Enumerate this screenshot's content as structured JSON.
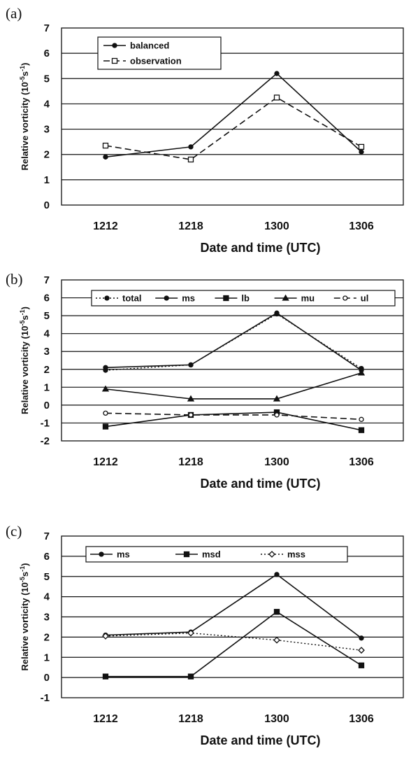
{
  "chart_data": [
    {
      "panel": "(a)",
      "type": "line",
      "categories": [
        "1212",
        "1218",
        "1300",
        "1306"
      ],
      "xlabel": "Date and time (UTC)",
      "ylabel_main": "Relative vorticity (10",
      "ylabel_exp1": "-5",
      "ylabel_mid": "s",
      "ylabel_exp2": "-1",
      "ylabel_end": ")",
      "ylim": [
        0,
        7
      ],
      "yticks": [
        "0",
        "1",
        "2",
        "3",
        "4",
        "5",
        "6",
        "7"
      ],
      "grid": true,
      "legend_position": "top-left",
      "series": [
        {
          "name": "balanced",
          "values": [
            1.9,
            2.3,
            5.2,
            2.1
          ],
          "dash": "solid",
          "marker": "dot"
        },
        {
          "name": "observation",
          "values": [
            2.35,
            1.8,
            4.25,
            2.3
          ],
          "dash": "dashed",
          "marker": "open-square"
        }
      ]
    },
    {
      "panel": "(b)",
      "type": "line",
      "categories": [
        "1212",
        "1218",
        "1300",
        "1306"
      ],
      "xlabel": "Date and time (UTC)",
      "ylabel_main": "Relative vorticity (10",
      "ylabel_exp1": "-5",
      "ylabel_mid": "s",
      "ylabel_exp2": "-1",
      "ylabel_end": ")",
      "ylim": [
        -2,
        7
      ],
      "yticks": [
        "-2",
        "-1",
        "0",
        "1",
        "2",
        "3",
        "4",
        "5",
        "6",
        "7"
      ],
      "grid": true,
      "legend_position": "top",
      "series": [
        {
          "name": "total",
          "values": [
            1.95,
            2.25,
            5.1,
            2.05
          ],
          "dash": "dotted",
          "marker": "dot"
        },
        {
          "name": "ms",
          "values": [
            2.1,
            2.25,
            5.15,
            1.95
          ],
          "dash": "solid",
          "marker": "dot"
        },
        {
          "name": "lb",
          "values": [
            -1.2,
            -0.55,
            -0.4,
            -1.4
          ],
          "dash": "solid",
          "marker": "square"
        },
        {
          "name": "mu",
          "values": [
            0.9,
            0.35,
            0.35,
            1.8
          ],
          "dash": "solid",
          "marker": "triangle"
        },
        {
          "name": "ul",
          "values": [
            -0.45,
            -0.55,
            -0.55,
            -0.8
          ],
          "dash": "dashed",
          "marker": "open-circle"
        }
      ]
    },
    {
      "panel": "(c)",
      "type": "line",
      "categories": [
        "1212",
        "1218",
        "1300",
        "1306"
      ],
      "xlabel": "Date and time (UTC)",
      "ylabel_main": "Relative vorticity (10",
      "ylabel_exp1": "-5",
      "ylabel_mid": "s",
      "ylabel_exp2": "-1",
      "ylabel_end": ")",
      "ylim": [
        -1,
        7
      ],
      "yticks": [
        "-1",
        "0",
        "1",
        "2",
        "3",
        "4",
        "5",
        "6",
        "7"
      ],
      "grid": true,
      "legend_position": "top",
      "series": [
        {
          "name": "ms",
          "values": [
            2.1,
            2.25,
            5.1,
            1.95
          ],
          "dash": "solid",
          "marker": "dot"
        },
        {
          "name": "msd",
          "values": [
            0.05,
            0.05,
            3.25,
            0.6
          ],
          "dash": "solid",
          "marker": "square"
        },
        {
          "name": "mss",
          "values": [
            2.05,
            2.2,
            1.85,
            1.35
          ],
          "dash": "dotted",
          "marker": "open-diamond"
        }
      ]
    }
  ]
}
